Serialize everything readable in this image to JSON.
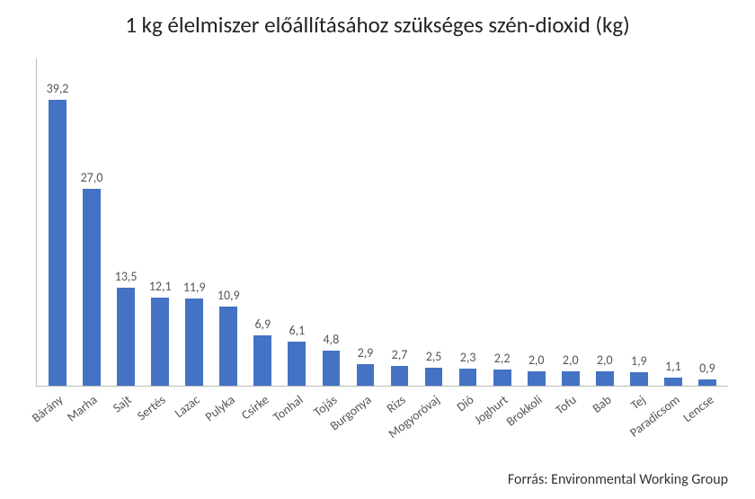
{
  "title": "1 kg élelmiszer előállításához szükséges szén-dioxid (kg)",
  "title_fontsize": 25,
  "title_color": "#222222",
  "chart": {
    "type": "bar",
    "categories": [
      "Bárány",
      "Marha",
      "Sajt",
      "Sertés",
      "Lazac",
      "Pulyka",
      "Csirke",
      "Tonhal",
      "Tojás",
      "Burgonya",
      "Rizs",
      "Mogyoróvaj",
      "Dió",
      "Joghurt",
      "Brokkoli",
      "Tofu",
      "Bab",
      "Tej",
      "Paradicsom",
      "Lencse"
    ],
    "values": [
      39.2,
      27.0,
      13.5,
      12.1,
      11.9,
      10.9,
      6.9,
      6.1,
      4.8,
      2.9,
      2.7,
      2.5,
      2.3,
      2.2,
      2.0,
      2.0,
      2.0,
      1.9,
      1.1,
      0.9
    ],
    "value_labels": [
      "39,2",
      "27,0",
      "13,5",
      "12,1",
      "11,9",
      "10,9",
      "6,9",
      "6,1",
      "4,8",
      "2,9",
      "2,7",
      "2,5",
      "2,3",
      "2,2",
      "2,0",
      "2,0",
      "2,0",
      "1,9",
      "1,1",
      "0,9"
    ],
    "bar_color": "#4472c4",
    "ylim": [
      0,
      45
    ],
    "background_color": "#ffffff",
    "axis_color": "#bbbbbb",
    "label_color": "#555555",
    "value_fontsize": 14,
    "xlabel_fontsize": 14,
    "xlabel_rotation_deg": -38,
    "bar_width_ratio": 0.52
  },
  "source_label": "Forrás: Environmental Working Group",
  "source_fontsize": 16
}
